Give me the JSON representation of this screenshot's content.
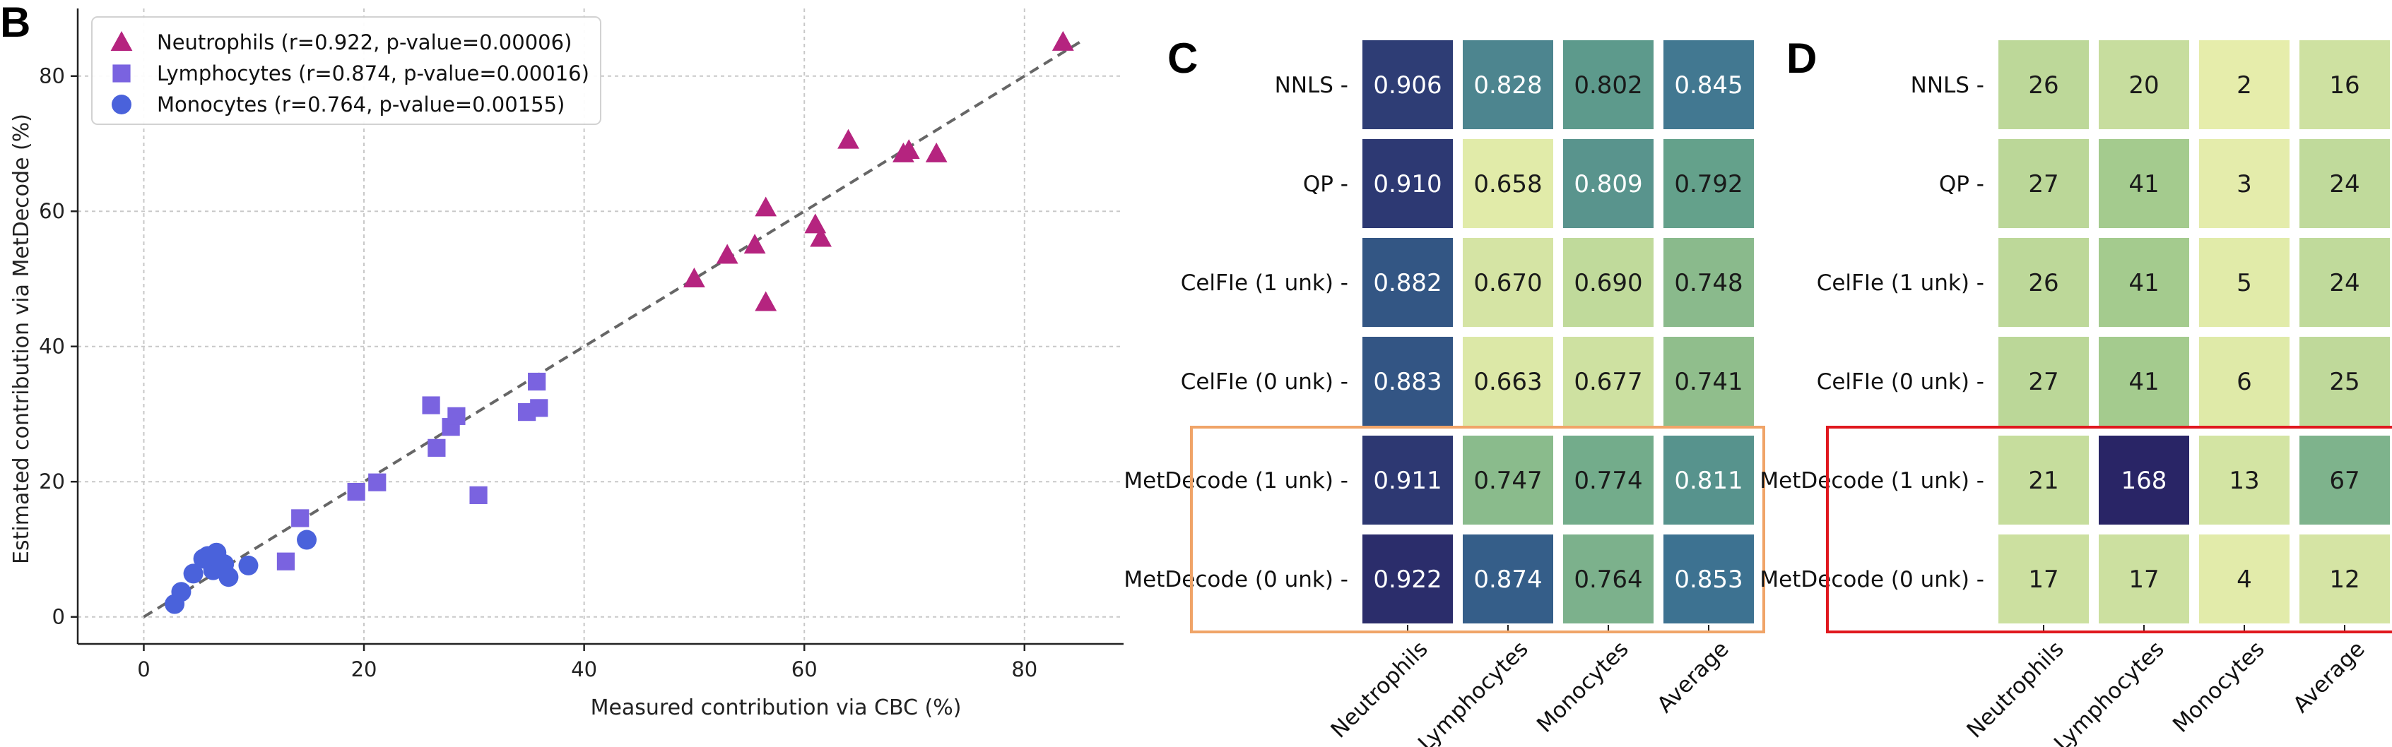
{
  "chart_data": [
    {
      "panel": "B",
      "type": "scatter",
      "xlabel": "Measured contribution via CBC (%)",
      "ylabel": "Estimated contribution via MetDecode (%)",
      "xlim": [
        -6,
        89
      ],
      "ylim": [
        -4,
        90
      ],
      "xticks": [
        0,
        20,
        40,
        60,
        80
      ],
      "yticks": [
        0,
        20,
        40,
        60,
        80
      ],
      "grid": true,
      "legend_position": "top-left",
      "reference_line": {
        "style": "dashed",
        "from": [
          0,
          0
        ],
        "to": [
          85,
          85
        ]
      },
      "series": [
        {
          "name": "Neutrophils (r=0.922, p-value=0.00006)",
          "marker": "triangle",
          "color": "#b5247f",
          "x": [
            50,
            53,
            55.5,
            56.5,
            56.5,
            61,
            61.5,
            64,
            69,
            69.5,
            72,
            83.5
          ],
          "y": [
            50,
            53.5,
            55,
            60.5,
            46.5,
            58,
            56,
            70.5,
            68.5,
            69,
            68.5,
            85
          ]
        },
        {
          "name": "Lymphocytes (r=0.874, p-value=0.00016)",
          "marker": "square",
          "color": "#7a63e0",
          "x": [
            12.9,
            14.2,
            19.3,
            21.2,
            26.1,
            26.6,
            27.9,
            28.4,
            30.4,
            34.8,
            35.7,
            35.9
          ],
          "y": [
            8.2,
            14.6,
            18.5,
            19.9,
            31.3,
            25.0,
            28.1,
            29.7,
            18.0,
            30.3,
            34.8,
            30.9
          ]
        },
        {
          "name": "Monocytes (r=0.764, p-value=0.00155)",
          "marker": "circle",
          "color": "#4a62db",
          "x": [
            2.8,
            3.4,
            4.5,
            5.4,
            6.3,
            6.6,
            7.3,
            7.7,
            9.5,
            14.8,
            5.8
          ],
          "y": [
            1.9,
            3.7,
            6.4,
            8.6,
            6.9,
            9.5,
            7.8,
            5.9,
            7.6,
            11.4,
            9.0
          ]
        }
      ]
    },
    {
      "panel": "C",
      "type": "heatmap",
      "rows": [
        "NNLS",
        "QP",
        "CelFIe (1 unk)",
        "CelFIe (0 unk)",
        "MetDecode (1 unk)",
        "MetDecode (0 unk)"
      ],
      "columns": [
        "Neutrophils",
        "Lymphocytes",
        "Monocytes",
        "Average"
      ],
      "values": [
        [
          "0.906",
          "0.828",
          "0.802",
          "0.845"
        ],
        [
          "0.910",
          "0.658",
          "0.809",
          "0.792"
        ],
        [
          "0.882",
          "0.670",
          "0.690",
          "0.748"
        ],
        [
          "0.883",
          "0.663",
          "0.677",
          "0.741"
        ],
        [
          "0.911",
          "0.747",
          "0.774",
          "0.811"
        ],
        [
          "0.922",
          "0.874",
          "0.764",
          "0.853"
        ]
      ],
      "color_range": [
        0.65,
        0.93
      ],
      "highlight": {
        "rows": [
          4,
          5
        ],
        "color": "#f0a468"
      }
    },
    {
      "panel": "D",
      "type": "heatmap",
      "rows": [
        "NNLS",
        "QP",
        "CelFIe (1 unk)",
        "CelFIe (0 unk)",
        "MetDecode (1 unk)",
        "MetDecode (0 unk)"
      ],
      "columns": [
        "Neutrophils",
        "Lymphocytes",
        "Monocytes",
        "Average"
      ],
      "values": [
        [
          "26",
          "20",
          "2",
          "16"
        ],
        [
          "27",
          "41",
          "3",
          "24"
        ],
        [
          "26",
          "41",
          "5",
          "24"
        ],
        [
          "27",
          "41",
          "6",
          "25"
        ],
        [
          "21",
          "168",
          "13",
          "67"
        ],
        [
          "17",
          "17",
          "4",
          "12"
        ]
      ],
      "color_range": [
        0,
        168
      ],
      "highlight": {
        "rows": [
          4,
          5
        ],
        "color": "#e0181e"
      }
    }
  ]
}
